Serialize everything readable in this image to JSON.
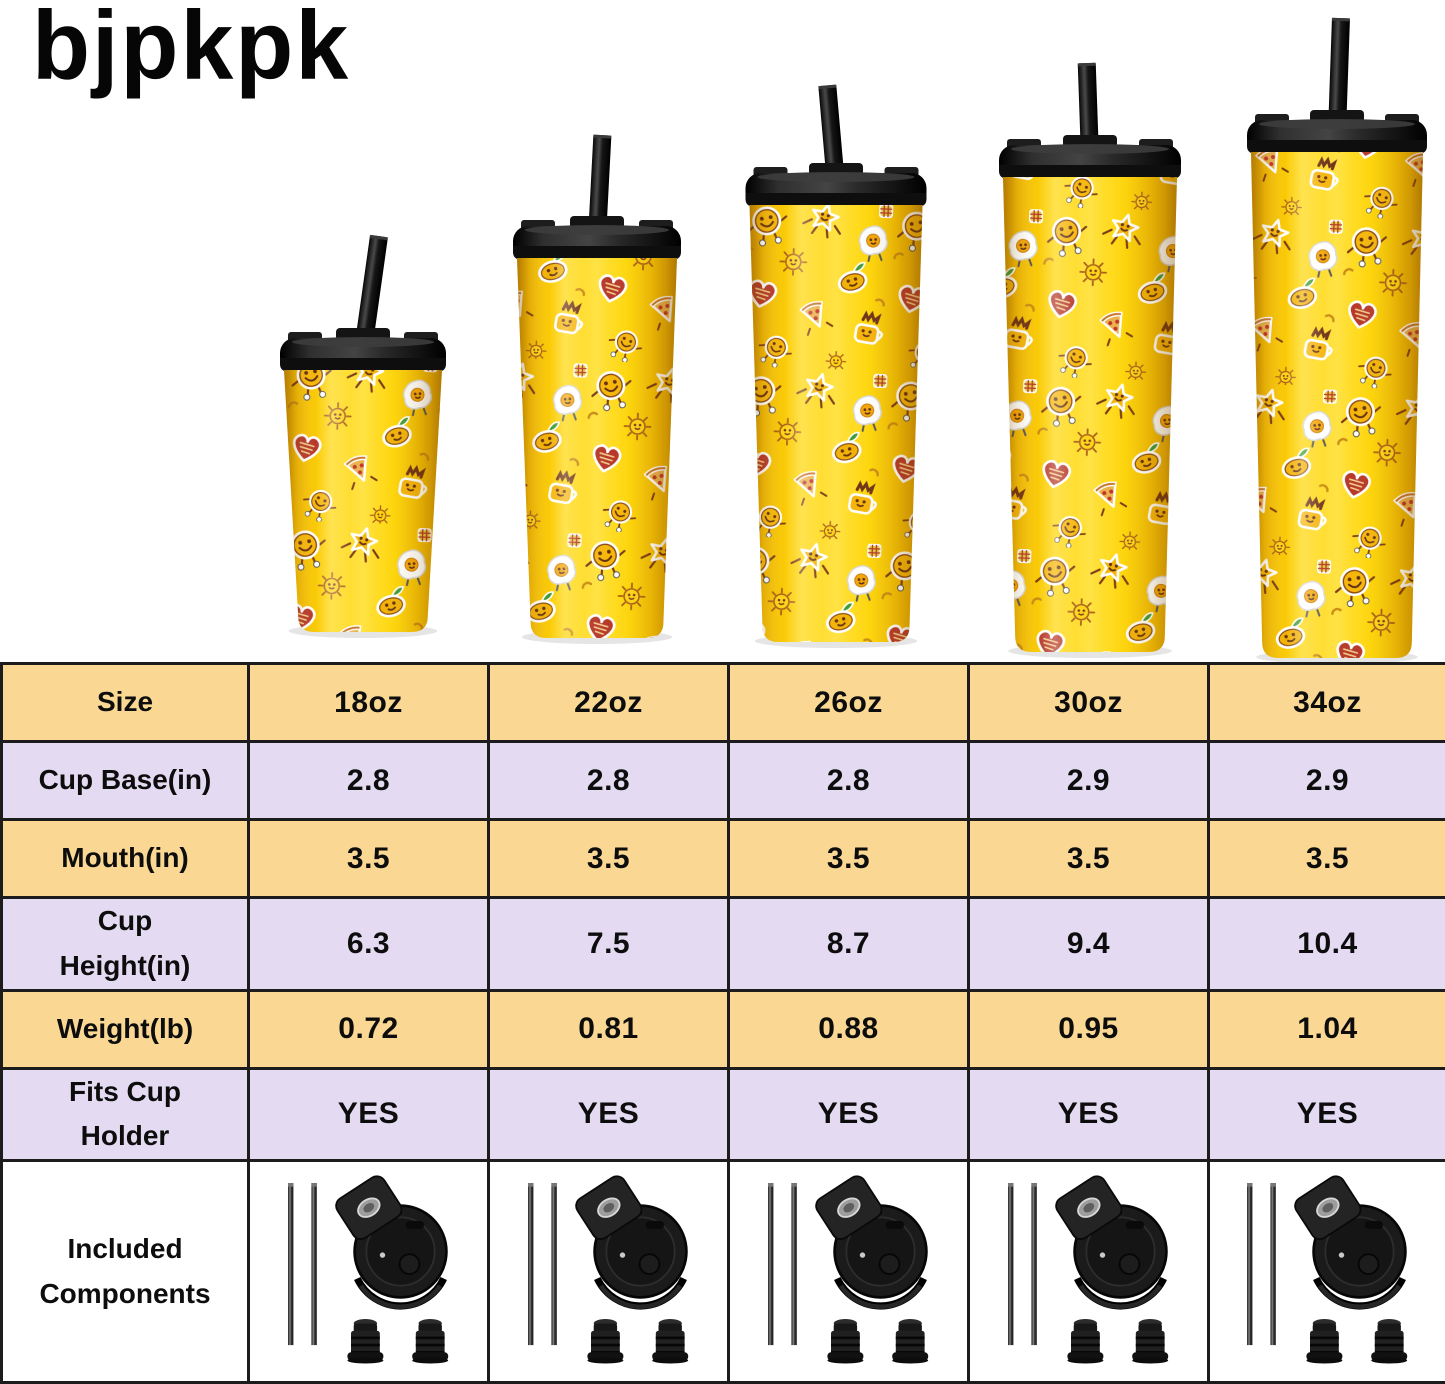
{
  "brand": {
    "logo_text": "bjpkpk"
  },
  "hero": {
    "description": "five-yellow-sticker-pattern-tumblers-with-black-lids-and-straws",
    "tumblers": [
      {
        "size_label": "18oz"
      },
      {
        "size_label": "22oz"
      },
      {
        "size_label": "26oz"
      },
      {
        "size_label": "30oz"
      },
      {
        "size_label": "34oz"
      }
    ]
  },
  "table": {
    "columns": [
      "18oz",
      "22oz",
      "26oz",
      "30oz",
      "34oz"
    ],
    "rows": [
      {
        "id": "size",
        "label": "Size",
        "bg": "yellow",
        "values": [
          "18oz",
          "22oz",
          "26oz",
          "30oz",
          "34oz"
        ]
      },
      {
        "id": "cup-base",
        "label": "Cup Base(in)",
        "bg": "lavender",
        "values": [
          "2.8",
          "2.8",
          "2.8",
          "2.9",
          "2.9"
        ]
      },
      {
        "id": "mouth",
        "label": "Mouth(in)",
        "bg": "yellow",
        "values": [
          "3.5",
          "3.5",
          "3.5",
          "3.5",
          "3.5"
        ]
      },
      {
        "id": "cup-height",
        "label": "Cup Height(in)",
        "bg": "lavender",
        "values": [
          "6.3",
          "7.5",
          "8.7",
          "9.4",
          "10.4"
        ]
      },
      {
        "id": "weight",
        "label": "Weight(lb)",
        "bg": "yellow",
        "values": [
          "0.72",
          "0.81",
          "0.88",
          "0.95",
          "1.04"
        ]
      },
      {
        "id": "fits-cup-holder",
        "label": "Fits Cup Holder",
        "bg": "lavender",
        "values": [
          "YES",
          "YES",
          "YES",
          "YES",
          "YES"
        ]
      },
      {
        "id": "included-components",
        "label": "Included Components",
        "bg": "white",
        "type": "components",
        "components_icons": [
          "straw-icon",
          "flip-lid-icon",
          "stopper-icon"
        ]
      }
    ]
  },
  "colors": {
    "row_yellow": "#fad894",
    "row_lavender": "#e4dbf3",
    "table_border": "#1c1c1c",
    "cup_yellow": "#ffd606",
    "lid_black": "#1f1f1f",
    "text": "#0d0d0d"
  }
}
